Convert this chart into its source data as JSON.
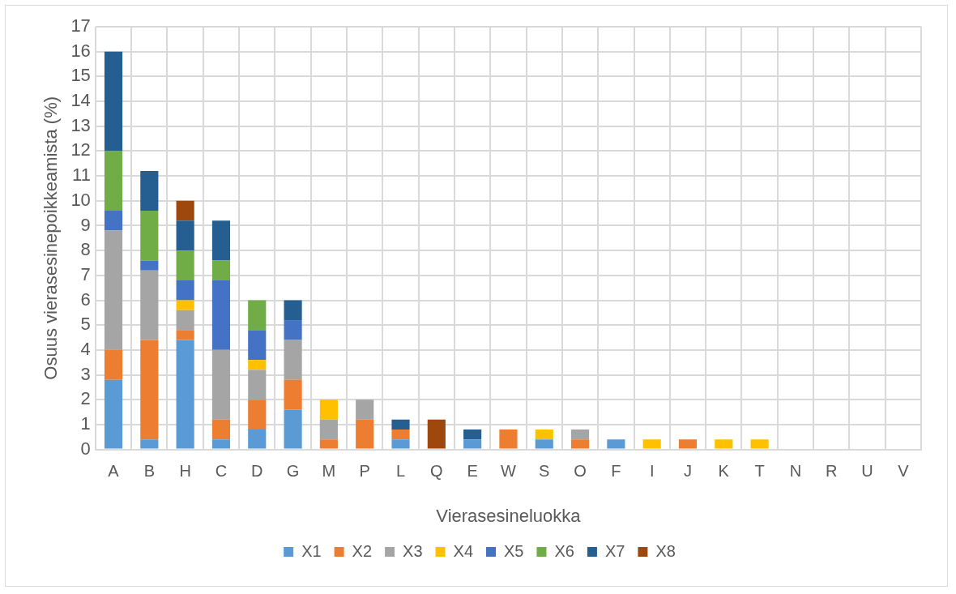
{
  "chart_data": {
    "type": "bar",
    "stacked": true,
    "xlabel": "Vierasesineluokka",
    "ylabel": "Osuus vierasesinepoikkeamista (%)",
    "categories": [
      "A",
      "B",
      "H",
      "C",
      "D",
      "G",
      "M",
      "P",
      "L",
      "Q",
      "E",
      "W",
      "S",
      "O",
      "F",
      "I",
      "J",
      "K",
      "T",
      "N",
      "R",
      "U",
      "V"
    ],
    "series": [
      {
        "name": "X1",
        "color": "#5b9bd5",
        "values": [
          2.8,
          0.4,
          4.4,
          0.4,
          0.8,
          1.6,
          null,
          null,
          0.4,
          null,
          0.4,
          null,
          0.4,
          null,
          0.4,
          null,
          null,
          null,
          null,
          null,
          null,
          null,
          null
        ]
      },
      {
        "name": "X2",
        "color": "#ed7d31",
        "values": [
          1.2,
          4.0,
          0.4,
          0.8,
          1.2,
          1.2,
          0.4,
          1.2,
          0.4,
          null,
          null,
          0.8,
          null,
          0.4,
          null,
          null,
          0.4,
          null,
          null,
          null,
          null,
          null,
          null
        ]
      },
      {
        "name": "X3",
        "color": "#a5a5a5",
        "values": [
          4.8,
          2.8,
          0.8,
          2.8,
          1.2,
          1.6,
          0.8,
          0.8,
          null,
          null,
          null,
          null,
          null,
          0.4,
          null,
          null,
          null,
          null,
          null,
          null,
          null,
          null,
          null
        ]
      },
      {
        "name": "X4",
        "color": "#ffc000",
        "values": [
          null,
          null,
          0.4,
          null,
          0.4,
          null,
          0.8,
          null,
          null,
          null,
          null,
          null,
          0.4,
          null,
          null,
          0.4,
          null,
          0.4,
          0.4,
          null,
          null,
          null,
          null
        ]
      },
      {
        "name": "X5",
        "color": "#4472c4",
        "values": [
          0.8,
          0.4,
          0.8,
          2.8,
          1.2,
          0.8,
          null,
          null,
          null,
          null,
          null,
          null,
          null,
          null,
          null,
          null,
          null,
          null,
          null,
          null,
          null,
          null,
          null
        ]
      },
      {
        "name": "X6",
        "color": "#70ad47",
        "values": [
          2.4,
          2.0,
          1.2,
          0.8,
          1.2,
          null,
          null,
          null,
          null,
          null,
          null,
          null,
          null,
          null,
          null,
          null,
          null,
          null,
          null,
          null,
          null,
          null,
          null
        ]
      },
      {
        "name": "X7",
        "color": "#255e91",
        "values": [
          4.0,
          1.6,
          1.2,
          1.6,
          null,
          0.8,
          null,
          null,
          0.4,
          null,
          0.4,
          null,
          null,
          null,
          null,
          null,
          null,
          null,
          null,
          null,
          null,
          null,
          null
        ]
      },
      {
        "name": "X8",
        "color": "#9e480e",
        "values": [
          null,
          null,
          0.8,
          null,
          null,
          null,
          null,
          null,
          null,
          1.2,
          null,
          null,
          null,
          null,
          null,
          null,
          null,
          null,
          null,
          null,
          null,
          null,
          null
        ]
      }
    ],
    "ylim": [
      0,
      17
    ],
    "yticks": [
      0,
      1,
      2,
      3,
      4,
      5,
      6,
      7,
      8,
      9,
      10,
      11,
      12,
      13,
      14,
      15,
      16,
      17
    ],
    "grid": true,
    "legend": "bottom"
  }
}
